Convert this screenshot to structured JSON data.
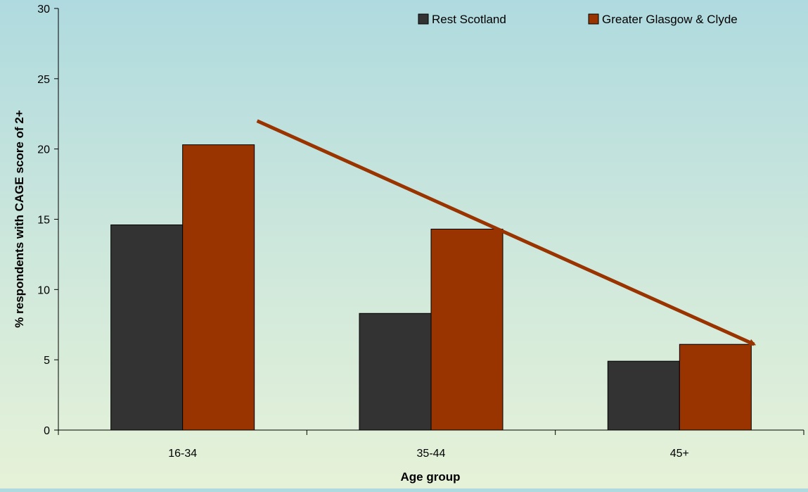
{
  "chart_data": {
    "type": "bar",
    "categories": [
      "16-34",
      "35-44",
      "45+"
    ],
    "series": [
      {
        "name": "Rest Scotland",
        "values": [
          14.6,
          8.3,
          4.9
        ],
        "color": "#333333"
      },
      {
        "name": "Greater Glasgow & Clyde",
        "values": [
          20.3,
          14.3,
          6.1
        ],
        "color": "#993300"
      }
    ],
    "xlabel": "Age group",
    "ylabel": "% respondents with CAGE score of 2+",
    "ylim": [
      0,
      30
    ],
    "yticks": [
      0,
      5,
      10,
      15,
      20,
      25,
      30
    ],
    "grid": false,
    "legend_position": "top-right",
    "trend_arrow": {
      "from": [
        0.3,
        22
      ],
      "to": [
        2.3,
        6.1
      ],
      "color": "#993300"
    }
  }
}
